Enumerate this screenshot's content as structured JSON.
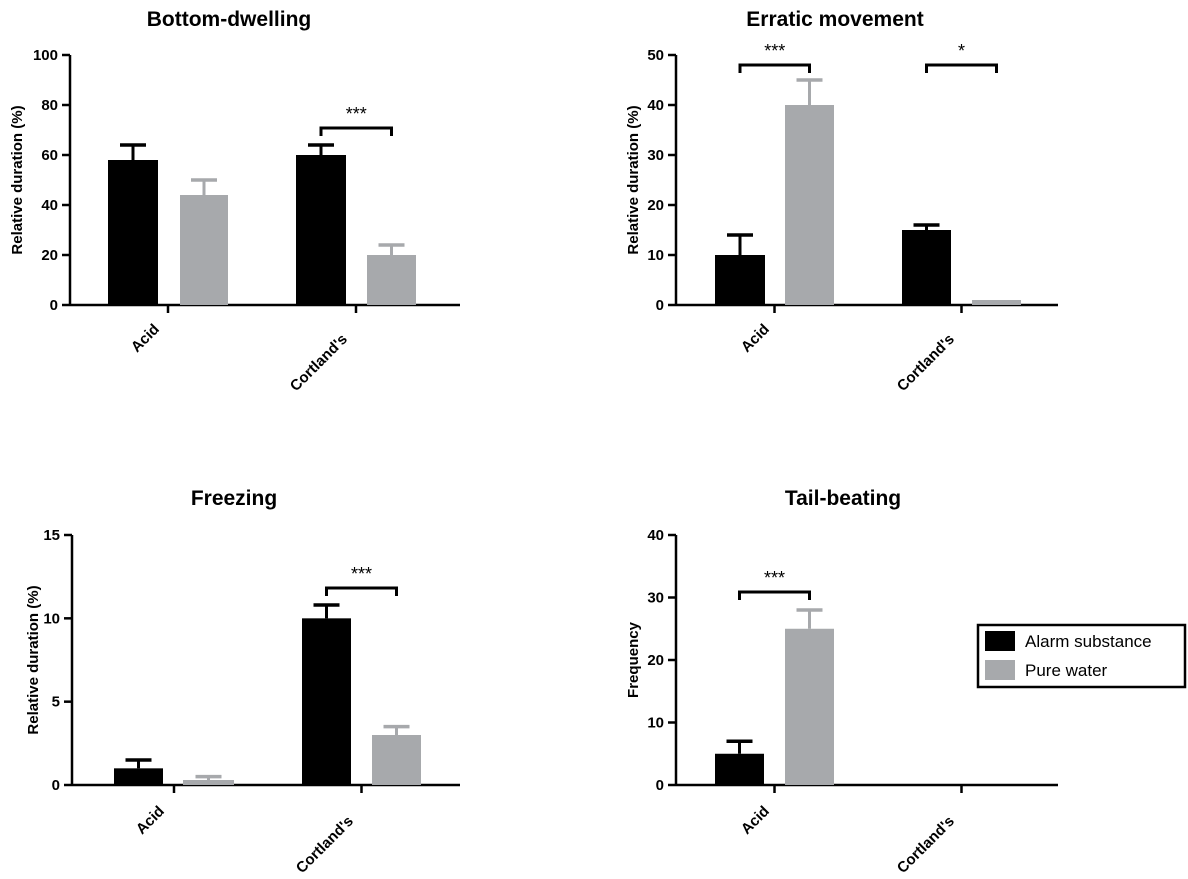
{
  "colors": {
    "alarm": "#000000",
    "water": "#a7a9ac",
    "axis": "#000000"
  },
  "legend": {
    "placement": "right",
    "items": [
      {
        "label": "Alarm substance",
        "color": "#000000"
      },
      {
        "label": "Pure water",
        "color": "#a7a9ac"
      }
    ]
  },
  "chart_data": [
    {
      "type": "bar",
      "title": "Bottom-dwelling",
      "ylabel": "Relative duration (%)",
      "ylim": [
        0,
        100
      ],
      "yticks": [
        0,
        20,
        40,
        60,
        80,
        100
      ],
      "ytick_labels": [
        "0",
        "20",
        "40",
        "60",
        "80",
        "100"
      ],
      "categories": [
        "Acid",
        "Cortland's"
      ],
      "series": [
        {
          "name": "Alarm substance",
          "values": [
            58,
            60
          ],
          "errors": [
            6,
            4
          ]
        },
        {
          "name": "Pure water",
          "values": [
            44,
            20
          ],
          "errors": [
            6,
            4
          ]
        }
      ],
      "significance": [
        {
          "category": 1,
          "label": "***"
        }
      ]
    },
    {
      "type": "bar",
      "title": "Erratic movement",
      "ylabel": "Relative duration (%)",
      "ylim": [
        0,
        50
      ],
      "yticks": [
        0,
        10,
        20,
        30,
        40,
        50
      ],
      "ytick_labels": [
        "0",
        "10",
        "20",
        "30",
        "40",
        "50"
      ],
      "categories": [
        "Acid",
        "Cortland's"
      ],
      "series": [
        {
          "name": "Alarm substance",
          "values": [
            10,
            15
          ],
          "errors": [
            4,
            1
          ]
        },
        {
          "name": "Pure water",
          "values": [
            40,
            1
          ],
          "errors": [
            5,
            0
          ]
        }
      ],
      "significance": [
        {
          "category": 0,
          "label": "***"
        },
        {
          "category": 1,
          "label": "*"
        }
      ]
    },
    {
      "type": "bar",
      "title": "Freezing",
      "ylabel": "Relative duration (%)",
      "ylim": [
        0,
        15
      ],
      "yticks": [
        0,
        5,
        10,
        15
      ],
      "ytick_labels": [
        "0",
        "5",
        "10",
        "15"
      ],
      "categories": [
        "Acid",
        "Cortland's"
      ],
      "series": [
        {
          "name": "Alarm substance",
          "values": [
            1,
            10
          ],
          "errors": [
            0.5,
            0.8
          ]
        },
        {
          "name": "Pure water",
          "values": [
            0.3,
            3
          ],
          "errors": [
            0.2,
            0.5
          ]
        }
      ],
      "significance": [
        {
          "category": 1,
          "label": "***"
        }
      ]
    },
    {
      "type": "bar",
      "title": "Tail-beating",
      "ylabel": "Frequency",
      "ylim": [
        0,
        40
      ],
      "yticks": [
        0,
        10,
        20,
        30,
        40
      ],
      "ytick_labels": [
        "0",
        "10",
        "20",
        "30",
        "40"
      ],
      "categories": [
        "Acid",
        "Cortland's"
      ],
      "series": [
        {
          "name": "Alarm substance",
          "values": [
            5,
            0
          ],
          "errors": [
            2,
            0
          ]
        },
        {
          "name": "Pure water",
          "values": [
            25,
            0
          ],
          "errors": [
            3,
            0
          ]
        }
      ],
      "significance": [
        {
          "category": 0,
          "label": "***"
        }
      ]
    }
  ]
}
